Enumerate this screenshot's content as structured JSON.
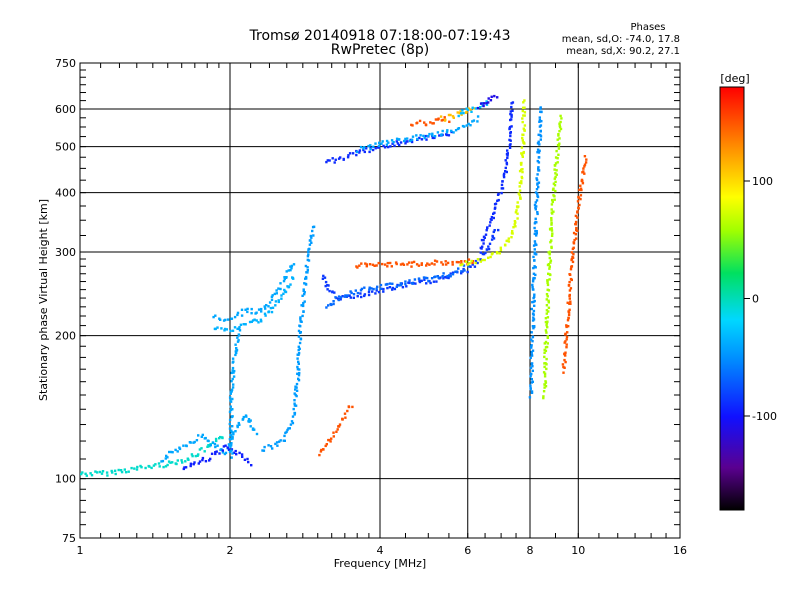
{
  "chart_data": {
    "type": "scatter",
    "title": "Tromsø 20140918 07:18:00-07:19:43",
    "subtitle": "RwPretec (8p)",
    "xlabel": "Frequency [MHz]",
    "ylabel": "Stationary phase Virtual Height [km]",
    "x_scale": "log2",
    "y_scale": "log",
    "xlim": [
      1,
      16
    ],
    "ylim": [
      75,
      750
    ],
    "x_ticks": [
      1,
      2,
      4,
      6,
      8,
      10,
      16
    ],
    "y_ticks": [
      75,
      100,
      200,
      300,
      400,
      500,
      600,
      750
    ],
    "grid": true,
    "legend": {
      "title": "Phases",
      "lines": [
        "mean, sd,O: -74.0, 17.8",
        "mean, sd,X: 90.2, 27.1"
      ]
    },
    "colorbar": {
      "label": "[deg]",
      "min": -180,
      "max": 180,
      "ticks": [
        100,
        0,
        -100
      ]
    },
    "series": [
      {
        "traces": [
          {
            "phase": -5,
            "pts": [
              [
                1.0,
                103
              ],
              [
                1.1,
                103
              ],
              [
                1.25,
                105
              ],
              [
                1.4,
                107
              ],
              [
                1.5,
                108
              ],
              [
                1.65,
                111
              ],
              [
                1.8,
                117
              ],
              [
                1.95,
                124
              ]
            ]
          },
          {
            "phase": -40,
            "pts": [
              [
                1.45,
                110
              ],
              [
                1.6,
                118
              ],
              [
                1.75,
                124
              ],
              [
                1.85,
                118
              ],
              [
                1.95,
                114
              ],
              [
                2.05,
                128
              ],
              [
                2.15,
                137
              ],
              [
                2.25,
                124
              ]
            ]
          },
          {
            "phase": -95,
            "pts": [
              [
                1.6,
                106
              ],
              [
                1.8,
                111
              ],
              [
                1.95,
                117
              ],
              [
                2.1,
                112
              ],
              [
                2.2,
                108
              ]
            ]
          },
          {
            "phase": -45,
            "pts": [
              [
                2.3,
                116
              ],
              [
                2.45,
                118
              ],
              [
                2.55,
                121
              ],
              [
                2.62,
                128
              ],
              [
                2.68,
                138
              ],
              [
                2.72,
                165
              ],
              [
                2.75,
                200
              ],
              [
                2.8,
                250
              ],
              [
                2.85,
                290
              ],
              [
                2.9,
                320
              ],
              [
                2.92,
                345
              ]
            ]
          },
          {
            "phase": -40,
            "pts": [
              [
                1.85,
                220
              ],
              [
                1.95,
                218
              ],
              [
                2.05,
                222
              ],
              [
                2.15,
                228
              ],
              [
                2.25,
                225
              ],
              [
                2.35,
                230
              ],
              [
                2.45,
                245
              ],
              [
                2.55,
                262
              ],
              [
                2.62,
                278
              ],
              [
                2.68,
                290
              ]
            ]
          },
          {
            "phase": -35,
            "pts": [
              [
                1.85,
                210
              ],
              [
                1.95,
                206
              ],
              [
                2.05,
                208
              ],
              [
                2.15,
                214
              ],
              [
                2.25,
                216
              ],
              [
                2.35,
                221
              ],
              [
                2.45,
                233
              ],
              [
                2.55,
                245
              ],
              [
                2.62,
                258
              ],
              [
                2.68,
                272
              ]
            ]
          },
          {
            "phase": -40,
            "pts": [
              [
                2.0,
                112
              ],
              [
                2.0,
                130
              ],
              [
                2.0,
                150
              ],
              [
                2.02,
                170
              ],
              [
                2.05,
                195
              ],
              [
                2.1,
                210
              ]
            ]
          },
          {
            "phase": -85,
            "pts": [
              [
                3.05,
                270
              ],
              [
                3.15,
                250
              ],
              [
                3.3,
                240
              ],
              [
                3.5,
                243
              ],
              [
                3.8,
                247
              ],
              [
                4.1,
                252
              ],
              [
                4.4,
                256
              ],
              [
                4.8,
                260
              ],
              [
                5.2,
                264
              ],
              [
                5.6,
                270
              ],
              [
                6.0,
                278
              ],
              [
                6.3,
                290
              ],
              [
                6.6,
                312
              ],
              [
                6.85,
                340
              ]
            ]
          },
          {
            "phase": -65,
            "pts": [
              [
                3.1,
                232
              ],
              [
                3.25,
                240
              ],
              [
                3.5,
                248
              ],
              [
                3.8,
                252
              ],
              [
                4.1,
                256
              ],
              [
                4.5,
                260
              ],
              [
                4.9,
                264
              ],
              [
                5.3,
                268
              ],
              [
                5.7,
                274
              ],
              [
                6.0,
                282
              ]
            ]
          },
          {
            "phase": -90,
            "pts": [
              [
                6.3,
                300
              ],
              [
                6.5,
                330
              ],
              [
                6.7,
                360
              ],
              [
                6.9,
                395
              ],
              [
                7.05,
                430
              ],
              [
                7.15,
                470
              ],
              [
                7.25,
                520
              ],
              [
                7.3,
                580
              ],
              [
                7.35,
                630
              ]
            ]
          },
          {
            "phase": 150,
            "pts": [
              [
                3.55,
                282
              ],
              [
                3.8,
                282
              ],
              [
                4.1,
                283
              ],
              [
                4.4,
                284
              ],
              [
                4.8,
                285
              ],
              [
                5.2,
                286
              ],
              [
                5.6,
                286
              ],
              [
                6.0,
                288
              ],
              [
                6.2,
                292
              ]
            ]
          },
          {
            "phase": 75,
            "pts": [
              [
                5.8,
                284
              ],
              [
                6.1,
                286
              ],
              [
                6.4,
                291
              ],
              [
                6.8,
                298
              ],
              [
                7.1,
                312
              ],
              [
                7.4,
                340
              ],
              [
                7.55,
                380
              ],
              [
                7.65,
                440
              ],
              [
                7.7,
                500
              ],
              [
                7.72,
                560
              ],
              [
                7.75,
                630
              ]
            ]
          },
          {
            "phase": -90,
            "pts": [
              [
                3.1,
                468
              ],
              [
                3.25,
                472
              ],
              [
                3.45,
                480
              ],
              [
                3.65,
                490
              ],
              [
                3.9,
                500
              ],
              [
                4.2,
                508
              ],
              [
                4.5,
                515
              ],
              [
                4.9,
                522
              ],
              [
                5.3,
                530
              ],
              [
                5.6,
                540
              ]
            ]
          },
          {
            "phase": -40,
            "pts": [
              [
                3.6,
                495
              ],
              [
                3.9,
                505
              ],
              [
                4.2,
                515
              ],
              [
                4.6,
                523
              ],
              [
                5.0,
                530
              ],
              [
                5.4,
                540
              ],
              [
                5.8,
                552
              ],
              [
                6.1,
                565
              ],
              [
                6.3,
                580
              ]
            ]
          },
          {
            "phase": 150,
            "pts": [
              [
                4.6,
                560
              ],
              [
                4.9,
                565
              ],
              [
                5.2,
                570
              ],
              [
                5.5,
                575
              ]
            ]
          },
          {
            "phase": 110,
            "pts": [
              [
                5.3,
                575
              ],
              [
                5.6,
                585
              ],
              [
                5.9,
                595
              ],
              [
                6.2,
                605
              ]
            ]
          },
          {
            "phase": -30,
            "pts": [
              [
                5.7,
                590
              ],
              [
                6.0,
                600
              ],
              [
                6.3,
                612
              ],
              [
                6.6,
                620
              ]
            ]
          },
          {
            "phase": -110,
            "pts": [
              [
                6.3,
                610
              ],
              [
                6.5,
                625
              ],
              [
                6.7,
                640
              ],
              [
                6.9,
                645
              ]
            ]
          },
          {
            "phase": 150,
            "pts": [
              [
                3.0,
                114
              ],
              [
                3.1,
                118
              ],
              [
                3.2,
                124
              ],
              [
                3.3,
                131
              ],
              [
                3.4,
                138
              ],
              [
                3.5,
                145
              ]
            ]
          },
          {
            "phase": -50,
            "pts": [
              [
                8.0,
                150
              ],
              [
                8.05,
                200
              ],
              [
                8.1,
                260
              ],
              [
                8.15,
                320
              ],
              [
                8.2,
                380
              ],
              [
                8.25,
                440
              ],
              [
                8.3,
                500
              ],
              [
                8.35,
                560
              ],
              [
                8.4,
                620
              ]
            ]
          },
          {
            "phase": 60,
            "pts": [
              [
                8.5,
                150
              ],
              [
                8.6,
                210
              ],
              [
                8.7,
                280
              ],
              [
                8.8,
                350
              ],
              [
                8.9,
                410
              ],
              [
                9.0,
                470
              ],
              [
                9.1,
                530
              ],
              [
                9.2,
                590
              ]
            ]
          },
          {
            "phase": 150,
            "pts": [
              [
                9.3,
                170
              ],
              [
                9.5,
                230
              ],
              [
                9.7,
                300
              ],
              [
                9.9,
                360
              ],
              [
                10.1,
                420
              ],
              [
                10.3,
                480
              ]
            ]
          }
        ]
      }
    ]
  }
}
